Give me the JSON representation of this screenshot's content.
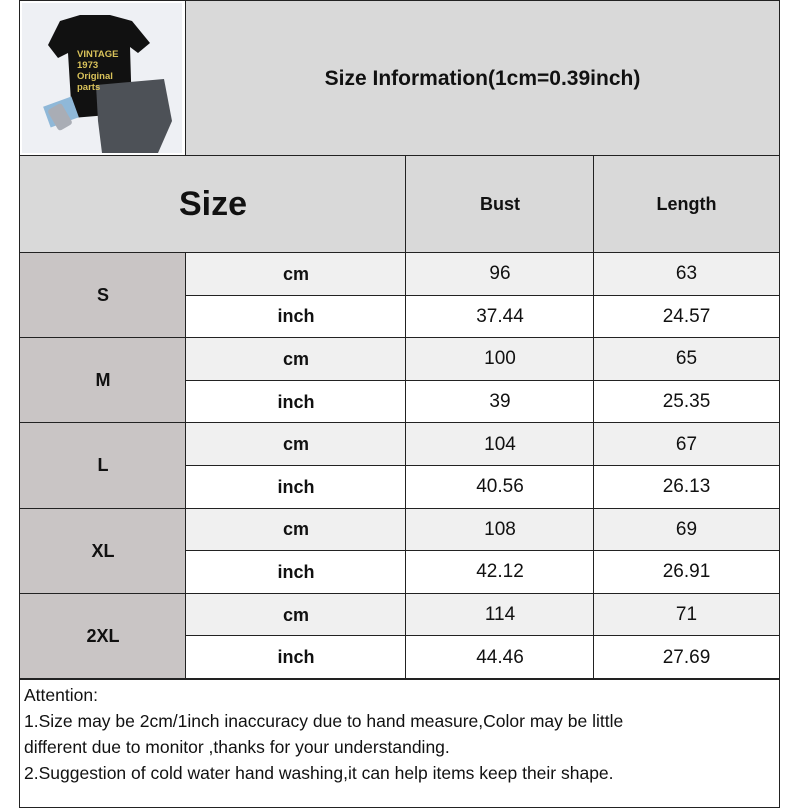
{
  "header": {
    "title": "Size Information(1cm=0.39inch)",
    "product_image": {
      "print_text": "VINTAGE 1973 Original parts",
      "description_icon": "tshirt-photo"
    }
  },
  "table": {
    "columns": [
      "Size",
      "Bust",
      "Length"
    ],
    "rows": [
      {
        "size": "S",
        "cm": {
          "unit": "cm",
          "bust": "96",
          "length": "63"
        },
        "inch": {
          "unit": "inch",
          "bust": "37.44",
          "length": "24.57"
        }
      },
      {
        "size": "M",
        "cm": {
          "unit": "cm",
          "bust": "100",
          "length": "65"
        },
        "inch": {
          "unit": "inch",
          "bust": "39",
          "length": "25.35"
        }
      },
      {
        "size": "L",
        "cm": {
          "unit": "cm",
          "bust": "104",
          "length": "67"
        },
        "inch": {
          "unit": "inch",
          "bust": "40.56",
          "length": "26.13"
        }
      },
      {
        "size": "XL",
        "cm": {
          "unit": "cm",
          "bust": "108",
          "length": "69"
        },
        "inch": {
          "unit": "inch",
          "bust": "42.12",
          "length": "26.91"
        }
      },
      {
        "size": "2XL",
        "cm": {
          "unit": "cm",
          "bust": "114",
          "length": "71"
        },
        "inch": {
          "unit": "inch",
          "bust": "44.46",
          "length": "27.69"
        }
      }
    ]
  },
  "notes": [
    "Attention:",
    "1.Size may be 2cm/1inch inaccuracy due to hand measure,Color may be little",
    "different due to monitor ,thanks for your understanding.",
    "2.Suggestion of cold water hand washing,it can help items keep their shape."
  ]
}
